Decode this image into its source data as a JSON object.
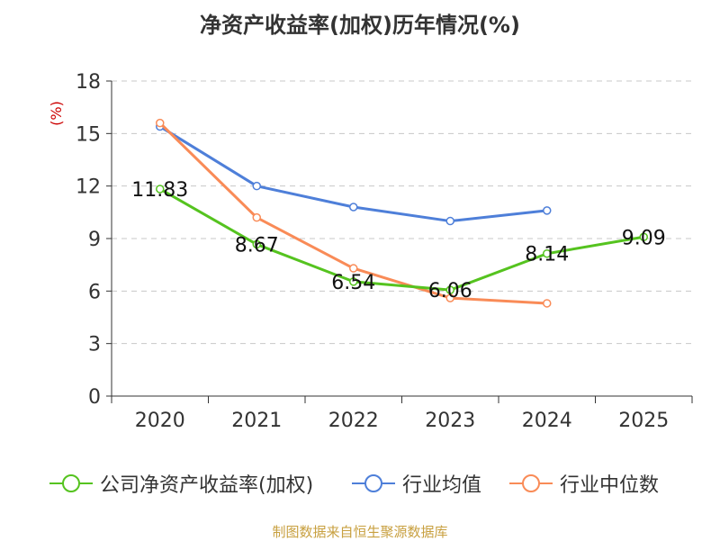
{
  "title": "净资产收益率(加权)历年情况(%)",
  "source": "制图数据来自恒生聚源数据库",
  "colors": {
    "company": "#55c31f",
    "industry_avg": "#4e7fd9",
    "industry_median": "#f98b57",
    "unit": "#cc0000",
    "source": "#c8a040"
  },
  "chart_data": {
    "type": "line",
    "title": "净资产收益率(加权)历年情况(%)",
    "ylabel": "(%)",
    "xlabel": "",
    "categories": [
      "2020",
      "2021",
      "2022",
      "2023",
      "2024",
      "2025"
    ],
    "ylim": [
      0,
      18
    ],
    "yticks": [
      0,
      3,
      6,
      9,
      12,
      15,
      18
    ],
    "grid": true,
    "legend_position": "bottom",
    "series": [
      {
        "name": "公司净资产收益率(加权)",
        "key": "company",
        "values": [
          11.83,
          8.67,
          6.54,
          6.06,
          8.14,
          9.09
        ],
        "labels": [
          "11.83",
          "8.67",
          "6.54",
          "6.06",
          "8.14",
          "9.09"
        ]
      },
      {
        "name": "行业均值",
        "key": "industry_avg",
        "values": [
          15.4,
          12.0,
          10.8,
          10.0,
          10.6,
          null
        ]
      },
      {
        "name": "行业中位数",
        "key": "industry_median",
        "values": [
          15.6,
          10.2,
          7.3,
          5.6,
          5.3,
          null
        ]
      }
    ]
  }
}
